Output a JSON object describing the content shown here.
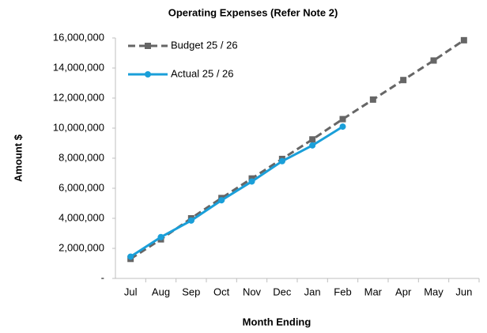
{
  "chart_data": {
    "type": "line",
    "title": "Operating Expenses (Refer Note 2)",
    "x_label": "Month Ending",
    "y_label": "Amount $",
    "categories": [
      "Jul",
      "Aug",
      "Sep",
      "Oct",
      "Nov",
      "Dec",
      "Jan",
      "Feb",
      "Mar",
      "Apr",
      "May",
      "Jun"
    ],
    "series": [
      {
        "name": "Budget 25 / 26",
        "color": "#666666",
        "dash": true,
        "marker": "square",
        "values": [
          1300000,
          2600000,
          4000000,
          5350000,
          6650000,
          7950000,
          9250000,
          10600000,
          11900000,
          13200000,
          14500000,
          15850000
        ]
      },
      {
        "name": "Actual 25 / 26",
        "color": "#1a9fd9",
        "dash": false,
        "marker": "circle",
        "values": [
          1450000,
          2750000,
          3850000,
          5200000,
          6450000,
          7800000,
          8850000,
          10100000,
          null,
          null,
          null,
          null
        ]
      }
    ],
    "ylim": [
      0,
      16000000
    ],
    "yticks": [
      {
        "value": 0,
        "label": "-"
      },
      {
        "value": 2000000,
        "label": "2,000,000"
      },
      {
        "value": 4000000,
        "label": "4,000,000"
      },
      {
        "value": 6000000,
        "label": "6,000,000"
      },
      {
        "value": 8000000,
        "label": "8,000,000"
      },
      {
        "value": 10000000,
        "label": "10,000,000"
      },
      {
        "value": 12000000,
        "label": "12,000,000"
      },
      {
        "value": 14000000,
        "label": "14,000,000"
      },
      {
        "value": 16000000,
        "label": "16,000,000"
      }
    ],
    "legend": "upper left",
    "grid": false
  }
}
